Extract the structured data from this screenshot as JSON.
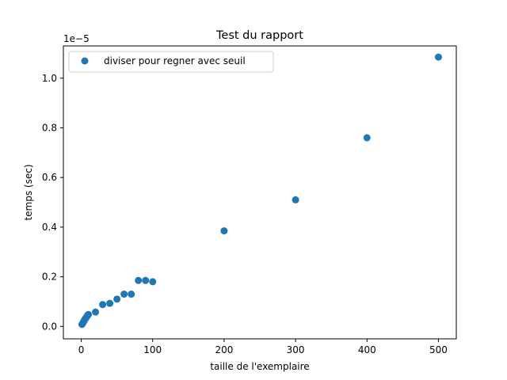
{
  "chart_data": {
    "type": "scatter",
    "title": "Test du rapport",
    "xlabel": "taille de l'exemplaire",
    "ylabel": "temps (sec)",
    "y_offset_label": "1e−5",
    "xlim": [
      -25,
      525
    ],
    "ylim": [
      -0.05,
      1.13
    ],
    "x_ticks": [
      0,
      100,
      200,
      300,
      400,
      500
    ],
    "x_tick_labels": [
      "0",
      "100",
      "200",
      "300",
      "400",
      "500"
    ],
    "y_ticks": [
      0.0,
      0.2,
      0.4,
      0.6,
      0.8,
      1.0
    ],
    "y_tick_labels": [
      "0.0",
      "0.2",
      "0.4",
      "0.6",
      "0.8",
      "1.0"
    ],
    "grid": false,
    "legend_position": "upper-left",
    "series": [
      {
        "name": "diviser pour regner avec seuil",
        "color": "#1f77b4",
        "marker": "circle",
        "x": [
          1,
          2,
          3,
          4,
          5,
          6,
          7,
          8,
          9,
          10,
          20,
          30,
          40,
          50,
          60,
          70,
          80,
          90,
          100,
          200,
          300,
          400,
          500
        ],
        "y": [
          0.008,
          0.012,
          0.018,
          0.022,
          0.028,
          0.032,
          0.036,
          0.04,
          0.045,
          0.048,
          0.058,
          0.088,
          0.093,
          0.11,
          0.13,
          0.13,
          0.185,
          0.185,
          0.18,
          0.385,
          0.51,
          0.76,
          1.085
        ]
      }
    ]
  }
}
